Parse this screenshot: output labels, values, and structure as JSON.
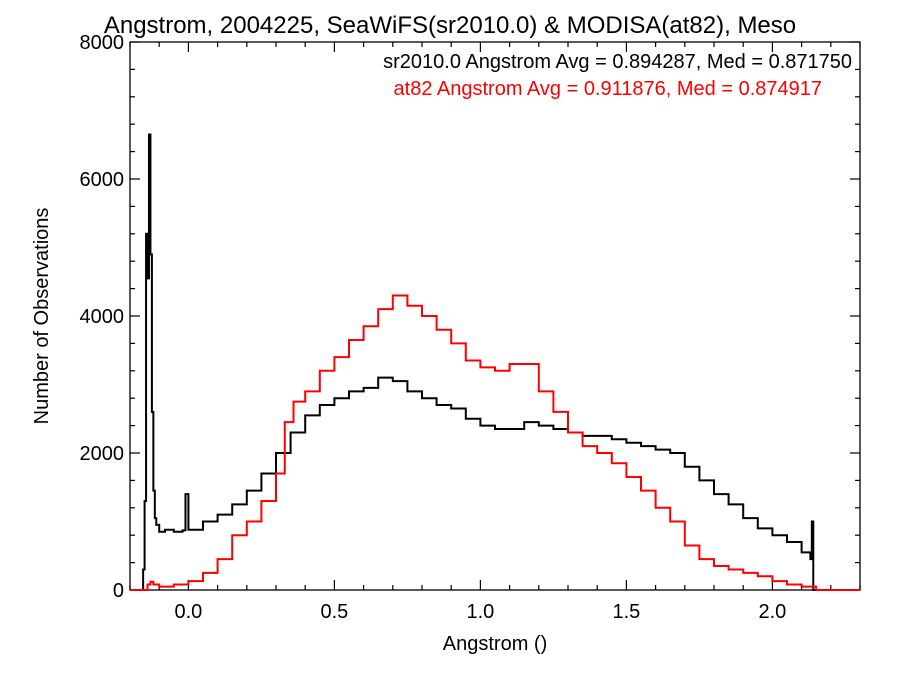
{
  "chart_data": {
    "type": "line",
    "title": "Angstrom, 2004225, SeaWiFS(sr2010.0) & MODISA(at82), Meso",
    "xlabel": "Angstrom ()",
    "ylabel": "Number of Observations",
    "xlim": [
      -0.2,
      2.3
    ],
    "ylim": [
      0,
      8000
    ],
    "x_ticks": [
      0.0,
      0.5,
      1.0,
      1.5,
      2.0
    ],
    "x_tick_labels": [
      "0.0",
      "0.5",
      "1.0",
      "1.5",
      "2.0"
    ],
    "y_ticks": [
      0,
      2000,
      4000,
      6000,
      8000
    ],
    "y_tick_labels": [
      "0",
      "2000",
      "4000",
      "6000",
      "8000"
    ],
    "grid": false,
    "legend_position": "top-right",
    "annotations": [
      {
        "text": "sr2010.0 Angstrom Avg = 0.894287, Med = 0.871750",
        "color": "#000000"
      },
      {
        "text": "at82 Angstrom Avg = 0.911876, Med = 0.874917",
        "color": "#ff0000"
      }
    ],
    "series": [
      {
        "color": "#000000",
        "style": "step",
        "points": [
          [
            -0.2,
            0
          ],
          [
            -0.16,
            0
          ],
          [
            -0.155,
            300
          ],
          [
            -0.15,
            1300
          ],
          [
            -0.145,
            5200
          ],
          [
            -0.14,
            4550
          ],
          [
            -0.135,
            6650
          ],
          [
            -0.13,
            4900
          ],
          [
            -0.125,
            2600
          ],
          [
            -0.12,
            1450
          ],
          [
            -0.115,
            1050
          ],
          [
            -0.11,
            950
          ],
          [
            -0.1,
            850
          ],
          [
            -0.08,
            880
          ],
          [
            -0.05,
            850
          ],
          [
            -0.02,
            870
          ],
          [
            -0.01,
            1400
          ],
          [
            0.0,
            880
          ],
          [
            0.05,
            1000
          ],
          [
            0.1,
            1100
          ],
          [
            0.15,
            1250
          ],
          [
            0.2,
            1450
          ],
          [
            0.25,
            1700
          ],
          [
            0.3,
            2000
          ],
          [
            0.35,
            2300
          ],
          [
            0.4,
            2550
          ],
          [
            0.45,
            2700
          ],
          [
            0.5,
            2800
          ],
          [
            0.55,
            2900
          ],
          [
            0.6,
            2950
          ],
          [
            0.65,
            3100
          ],
          [
            0.7,
            3050
          ],
          [
            0.75,
            2900
          ],
          [
            0.8,
            2800
          ],
          [
            0.85,
            2700
          ],
          [
            0.9,
            2650
          ],
          [
            0.95,
            2500
          ],
          [
            1.0,
            2400
          ],
          [
            1.05,
            2350
          ],
          [
            1.1,
            2350
          ],
          [
            1.15,
            2450
          ],
          [
            1.2,
            2400
          ],
          [
            1.25,
            2350
          ],
          [
            1.3,
            2300
          ],
          [
            1.35,
            2250
          ],
          [
            1.4,
            2250
          ],
          [
            1.45,
            2200
          ],
          [
            1.5,
            2150
          ],
          [
            1.55,
            2100
          ],
          [
            1.6,
            2050
          ],
          [
            1.65,
            2000
          ],
          [
            1.7,
            1800
          ],
          [
            1.75,
            1600
          ],
          [
            1.8,
            1400
          ],
          [
            1.85,
            1250
          ],
          [
            1.9,
            1050
          ],
          [
            1.95,
            900
          ],
          [
            2.0,
            800
          ],
          [
            2.05,
            700
          ],
          [
            2.1,
            550
          ],
          [
            2.13,
            450
          ],
          [
            2.135,
            1000
          ],
          [
            2.14,
            0
          ],
          [
            2.3,
            0
          ]
        ]
      },
      {
        "color": "#ff0000",
        "style": "step",
        "points": [
          [
            -0.2,
            0
          ],
          [
            -0.15,
            0
          ],
          [
            -0.14,
            80
          ],
          [
            -0.13,
            120
          ],
          [
            -0.12,
            80
          ],
          [
            -0.1,
            50
          ],
          [
            -0.05,
            80
          ],
          [
            0.0,
            130
          ],
          [
            0.05,
            250
          ],
          [
            0.1,
            450
          ],
          [
            0.15,
            800
          ],
          [
            0.2,
            1000
          ],
          [
            0.25,
            1300
          ],
          [
            0.3,
            1700
          ],
          [
            0.33,
            2450
          ],
          [
            0.36,
            2750
          ],
          [
            0.4,
            2900
          ],
          [
            0.45,
            3200
          ],
          [
            0.5,
            3400
          ],
          [
            0.55,
            3650
          ],
          [
            0.6,
            3850
          ],
          [
            0.65,
            4100
          ],
          [
            0.7,
            4300
          ],
          [
            0.75,
            4150
          ],
          [
            0.8,
            4000
          ],
          [
            0.85,
            3800
          ],
          [
            0.9,
            3600
          ],
          [
            0.95,
            3350
          ],
          [
            1.0,
            3250
          ],
          [
            1.05,
            3200
          ],
          [
            1.1,
            3300
          ],
          [
            1.15,
            3300
          ],
          [
            1.2,
            2900
          ],
          [
            1.25,
            2600
          ],
          [
            1.3,
            2300
          ],
          [
            1.35,
            2100
          ],
          [
            1.4,
            2000
          ],
          [
            1.45,
            1850
          ],
          [
            1.5,
            1650
          ],
          [
            1.55,
            1450
          ],
          [
            1.6,
            1200
          ],
          [
            1.65,
            1000
          ],
          [
            1.7,
            650
          ],
          [
            1.75,
            450
          ],
          [
            1.8,
            350
          ],
          [
            1.85,
            300
          ],
          [
            1.9,
            250
          ],
          [
            1.95,
            200
          ],
          [
            2.0,
            130
          ],
          [
            2.05,
            80
          ],
          [
            2.1,
            50
          ],
          [
            2.15,
            0
          ],
          [
            2.3,
            0
          ]
        ]
      }
    ]
  }
}
